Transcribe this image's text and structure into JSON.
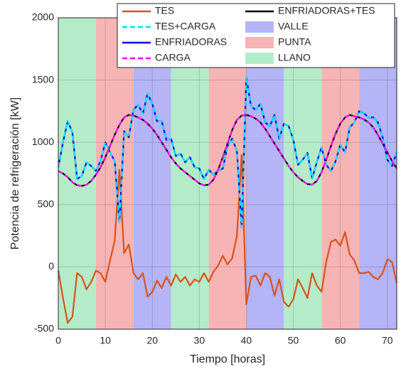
{
  "chart_data": {
    "type": "line",
    "xlabel": "Tiempo [horas]",
    "ylabel": "Potencia de refrigeración [kW]",
    "xlim": [
      0,
      72
    ],
    "ylim": [
      -500,
      2000
    ],
    "xticks": [
      0,
      10,
      20,
      30,
      40,
      50,
      60,
      70
    ],
    "yticks": [
      -500,
      0,
      500,
      1000,
      1500,
      2000
    ],
    "grid": true,
    "x": [
      0,
      1,
      2,
      3,
      4,
      5,
      6,
      7,
      8,
      9,
      10,
      11,
      12,
      13,
      14,
      15,
      16,
      17,
      18,
      19,
      20,
      21,
      22,
      23,
      24,
      25,
      26,
      27,
      28,
      29,
      30,
      31,
      32,
      33,
      34,
      35,
      36,
      37,
      38,
      39,
      40,
      41,
      42,
      43,
      44,
      45,
      46,
      47,
      48,
      49,
      50,
      51,
      52,
      53,
      54,
      55,
      56,
      57,
      58,
      59,
      60,
      61,
      62,
      63,
      64,
      65,
      66,
      67,
      68,
      69,
      70,
      71,
      72
    ],
    "series": [
      {
        "name": "TES",
        "color": "#d95319",
        "dash": false,
        "values": [
          -30,
          -250,
          -450,
          -400,
          -50,
          -80,
          -180,
          -120,
          -30,
          -50,
          -120,
          50,
          210,
          780,
          110,
          180,
          -50,
          -100,
          -50,
          -240,
          -200,
          -110,
          -170,
          -80,
          -150,
          -60,
          -120,
          -80,
          -150,
          -100,
          -120,
          -50,
          -120,
          -40,
          10,
          90,
          20,
          70,
          250,
          900,
          -300,
          -80,
          -70,
          -150,
          -50,
          -80,
          -230,
          -100,
          -280,
          -320,
          -260,
          -100,
          -170,
          -250,
          -50,
          -150,
          -200,
          40,
          200,
          220,
          170,
          280,
          100,
          50,
          -50,
          -50,
          -40,
          -80,
          -100,
          -50,
          60,
          40,
          -130
        ]
      },
      {
        "name": "TES+CARGA",
        "color": "#00e5ee",
        "dash": true,
        "values": [
          800,
          1000,
          1170,
          1080,
          705,
          730,
          840,
          810,
          770,
          850,
          1000,
          920,
          850,
          360,
          1090,
          1040,
          1265,
          1300,
          1230,
          1390,
          1310,
          1170,
          1170,
          1020,
          1030,
          890,
          910,
          840,
          880,
          800,
          790,
          705,
          780,
          740,
          770,
          790,
          970,
          1030,
          930,
          315,
          1520,
          1290,
          1260,
          1310,
          1160,
          1130,
          1220,
          1030,
          1150,
          1130,
          1020,
          820,
          860,
          915,
          710,
          840,
          960,
          820,
          770,
          850,
          980,
          920,
          1120,
          1160,
          1250,
          1235,
          1200,
          1200,
          1160,
          1040,
          860,
          810,
          920
        ]
      },
      {
        "name": "ENFRIADORAS",
        "color": "#0000ff",
        "dash": false,
        "values": [
          800,
          1000,
          1170,
          1080,
          705,
          730,
          840,
          810,
          770,
          850,
          1000,
          920,
          850,
          360,
          1090,
          1040,
          1265,
          1300,
          1230,
          1390,
          1310,
          1170,
          1170,
          1020,
          1030,
          890,
          910,
          840,
          880,
          800,
          790,
          705,
          780,
          740,
          770,
          790,
          970,
          1030,
          930,
          315,
          1520,
          1290,
          1260,
          1310,
          1160,
          1130,
          1220,
          1030,
          1150,
          1130,
          1020,
          820,
          860,
          915,
          710,
          840,
          960,
          820,
          770,
          850,
          980,
          920,
          1120,
          1160,
          1250,
          1235,
          1200,
          1200,
          1160,
          1040,
          860,
          810,
          920
        ]
      },
      {
        "name": "CARGA",
        "color": "#ff00ff",
        "dash": true,
        "values": [
          770,
          750,
          720,
          680,
          655,
          650,
          660,
          690,
          740,
          800,
          880,
          970,
          1060,
          1140,
          1200,
          1220,
          1215,
          1200,
          1180,
          1150,
          1110,
          1060,
          1000,
          940,
          880,
          830,
          790,
          760,
          730,
          700,
          670,
          655,
          660,
          700,
          780,
          880,
          990,
          1100,
          1180,
          1215,
          1220,
          1210,
          1190,
          1160,
          1110,
          1050,
          990,
          930,
          870,
          810,
          760,
          720,
          690,
          665,
          660,
          690,
          760,
          860,
          970,
          1070,
          1150,
          1200,
          1220,
          1210,
          1200,
          1185,
          1160,
          1120,
          1060,
          990,
          920,
          850,
          790
        ]
      },
      {
        "name": "ENFRIADORAS+TES",
        "color": "#000000",
        "dash": false,
        "values": [
          770,
          750,
          720,
          680,
          655,
          650,
          660,
          690,
          740,
          800,
          880,
          970,
          1060,
          1140,
          1200,
          1220,
          1215,
          1200,
          1180,
          1150,
          1110,
          1060,
          1000,
          940,
          880,
          830,
          790,
          760,
          730,
          700,
          670,
          655,
          660,
          700,
          780,
          880,
          990,
          1100,
          1180,
          1215,
          1220,
          1210,
          1190,
          1160,
          1110,
          1050,
          990,
          930,
          870,
          810,
          760,
          720,
          690,
          665,
          660,
          690,
          760,
          860,
          970,
          1070,
          1150,
          1200,
          1220,
          1210,
          1200,
          1185,
          1160,
          1120,
          1060,
          990,
          920,
          850,
          790
        ]
      }
    ],
    "periods": [
      {
        "name": "VALLE",
        "color": "#b4b4f7",
        "ranges": [
          [
            16,
            24
          ],
          [
            40,
            48
          ],
          [
            64,
            72
          ]
        ]
      },
      {
        "name": "PUNTA",
        "color": "#f7b4b4",
        "ranges": [
          [
            8,
            16
          ],
          [
            32,
            40
          ],
          [
            56,
            64
          ]
        ]
      },
      {
        "name": "LLANO",
        "color": "#b4ebc8",
        "ranges": [
          [
            0,
            8
          ],
          [
            24,
            32
          ],
          [
            48,
            56
          ]
        ]
      }
    ]
  }
}
